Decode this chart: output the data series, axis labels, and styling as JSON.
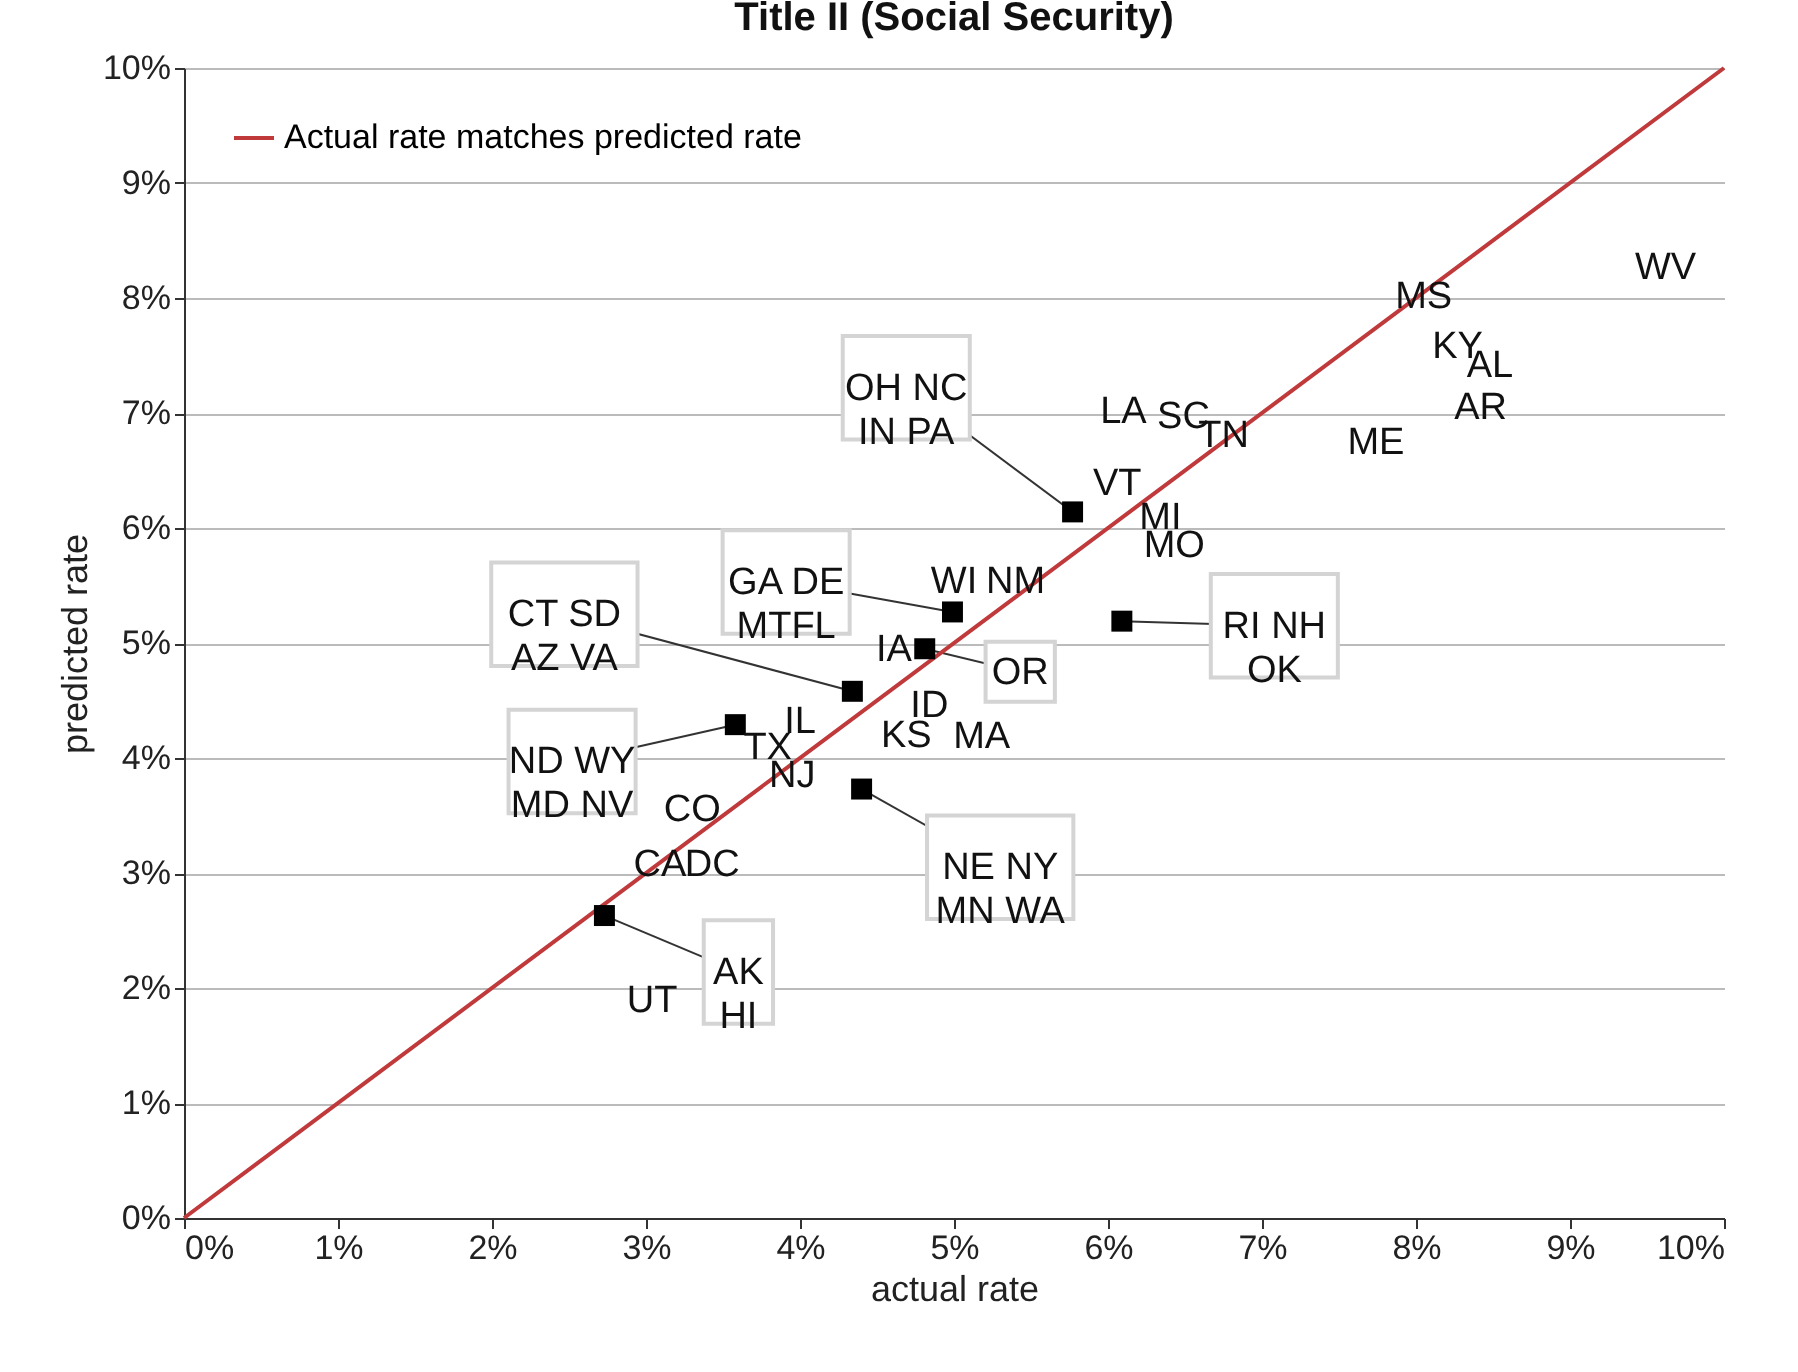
{
  "chart_data": {
    "type": "scatter",
    "title": "Title II (Social Security)",
    "xlabel": "actual rate",
    "ylabel": "predicted rate",
    "xlim": [
      0,
      10
    ],
    "ylim": [
      0,
      10
    ],
    "xticks": [
      {
        "value": 0,
        "label": "0%"
      },
      {
        "value": 1,
        "label": "1%"
      },
      {
        "value": 2,
        "label": "2%"
      },
      {
        "value": 3,
        "label": "3%"
      },
      {
        "value": 4,
        "label": "4%"
      },
      {
        "value": 5,
        "label": "5%"
      },
      {
        "value": 6,
        "label": "6%"
      },
      {
        "value": 7,
        "label": "7%"
      },
      {
        "value": 8,
        "label": "8%"
      },
      {
        "value": 9,
        "label": "9%"
      },
      {
        "value": 10,
        "label": "10%"
      }
    ],
    "yticks": [
      {
        "value": 0,
        "label": "0%"
      },
      {
        "value": 1,
        "label": "1%"
      },
      {
        "value": 2,
        "label": "2%"
      },
      {
        "value": 3,
        "label": "3%"
      },
      {
        "value": 4,
        "label": "4%"
      },
      {
        "value": 5,
        "label": "5%"
      },
      {
        "value": 6,
        "label": "6%"
      },
      {
        "value": 7,
        "label": "7%"
      },
      {
        "value": 8,
        "label": "8%"
      },
      {
        "value": 9,
        "label": "9%"
      },
      {
        "value": 10,
        "label": "10%"
      }
    ],
    "grid": "y",
    "legend": "top left",
    "series": [
      {
        "name": "Actual rate matches predicted rate",
        "type": "line",
        "color": "#c0393b",
        "marker": "none",
        "line_style": "solid",
        "x": [
          0,
          10
        ],
        "values": [
          0,
          10
        ]
      },
      {
        "color": "#000000",
        "marker": "square",
        "x": [
          5.77,
          4.99,
          4.81,
          4.34,
          3.58,
          4.4,
          6.09,
          2.73
        ],
        "values": [
          6.14,
          5.27,
          4.95,
          4.58,
          4.29,
          3.73,
          5.19,
          2.63
        ]
      }
    ],
    "annotations": [
      {
        "text": "OH NC\nIN PA",
        "x": 5.77,
        "y": 6.14
      },
      {
        "text": "GA DE\nMTFL",
        "x": 4.99,
        "y": 5.27
      },
      {
        "text": "OR",
        "x": 4.81,
        "y": 4.95
      },
      {
        "text": "CT  SD\nAZ  VA",
        "x": 4.34,
        "y": 4.58
      },
      {
        "text": "ND WY\nMD NV",
        "x": 3.58,
        "y": 4.29
      },
      {
        "text": "NE  NY\nMN WA",
        "x": 4.4,
        "y": 3.73
      },
      {
        "text": "RI NH\nOK",
        "x": 6.09,
        "y": 5.19
      },
      {
        "text": "AK\nHI",
        "x": 2.73,
        "y": 2.63
      },
      "WV",
      "MS",
      "KY",
      "AL",
      "AR",
      "ME",
      "LA",
      "SC",
      "TN",
      "VT",
      "MI",
      "MO",
      "WI",
      "NM",
      "IA",
      "ID",
      "KS",
      "MA",
      "IL",
      "TX",
      "NJ",
      "CO",
      "CA",
      "DC",
      "UT"
    ]
  }
}
